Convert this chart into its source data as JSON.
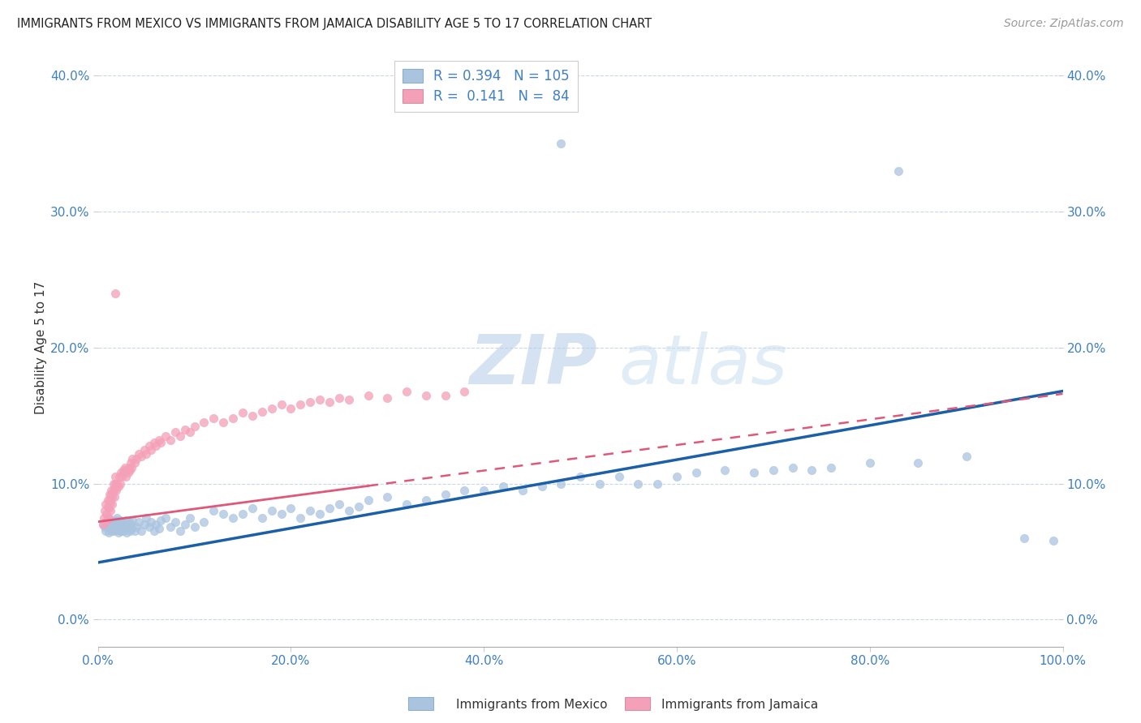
{
  "title": "IMMIGRANTS FROM MEXICO VS IMMIGRANTS FROM JAMAICA DISABILITY AGE 5 TO 17 CORRELATION CHART",
  "source": "Source: ZipAtlas.com",
  "ylabel": "Disability Age 5 to 17",
  "xlim": [
    0.0,
    1.0
  ],
  "ylim": [
    -0.02,
    0.42
  ],
  "yticks": [
    0.0,
    0.1,
    0.2,
    0.3,
    0.4
  ],
  "xticks": [
    0.0,
    0.2,
    0.4,
    0.6,
    0.8,
    1.0
  ],
  "xtick_labels": [
    "0.0%",
    "20.0%",
    "40.0%",
    "60.0%",
    "80.0%",
    "100.0%"
  ],
  "ytick_labels": [
    "0.0%",
    "10.0%",
    "20.0%",
    "30.0%",
    "40.0%"
  ],
  "mexico_color": "#aac4e0",
  "jamaica_color": "#f4a0b8",
  "mexico_line_color": "#1a5fa8",
  "jamaica_line_color": "#e05878",
  "tick_color": "#4080c0",
  "label_color": "#333333",
  "R_mexico": 0.394,
  "N_mexico": 105,
  "R_jamaica": 0.141,
  "N_jamaica": 84,
  "watermark_zip": "ZIP",
  "watermark_atlas": "atlas",
  "mexico_line_start_y": 0.042,
  "mexico_line_end_y": 0.168,
  "jamaica_line_start_y": 0.072,
  "jamaica_line_end_y": 0.166,
  "mexico_points_x": [
    0.005,
    0.007,
    0.008,
    0.009,
    0.01,
    0.01,
    0.011,
    0.012,
    0.013,
    0.013,
    0.014,
    0.015,
    0.015,
    0.016,
    0.017,
    0.018,
    0.018,
    0.019,
    0.02,
    0.02,
    0.021,
    0.022,
    0.022,
    0.023,
    0.024,
    0.025,
    0.025,
    0.026,
    0.027,
    0.028,
    0.029,
    0.03,
    0.031,
    0.032,
    0.033,
    0.034,
    0.035,
    0.036,
    0.038,
    0.04,
    0.042,
    0.045,
    0.048,
    0.05,
    0.053,
    0.055,
    0.058,
    0.06,
    0.063,
    0.065,
    0.07,
    0.075,
    0.08,
    0.085,
    0.09,
    0.095,
    0.1,
    0.11,
    0.12,
    0.13,
    0.14,
    0.15,
    0.16,
    0.17,
    0.18,
    0.19,
    0.2,
    0.21,
    0.22,
    0.23,
    0.24,
    0.25,
    0.26,
    0.27,
    0.28,
    0.3,
    0.32,
    0.34,
    0.36,
    0.38,
    0.4,
    0.42,
    0.44,
    0.46,
    0.48,
    0.5,
    0.52,
    0.54,
    0.56,
    0.58,
    0.6,
    0.62,
    0.65,
    0.68,
    0.7,
    0.72,
    0.74,
    0.76,
    0.8,
    0.85,
    0.9,
    0.48,
    0.83,
    0.96,
    0.99
  ],
  "mexico_points_y": [
    0.07,
    0.068,
    0.065,
    0.072,
    0.068,
    0.075,
    0.064,
    0.07,
    0.067,
    0.073,
    0.065,
    0.068,
    0.072,
    0.065,
    0.07,
    0.067,
    0.073,
    0.066,
    0.068,
    0.075,
    0.064,
    0.07,
    0.066,
    0.073,
    0.065,
    0.068,
    0.072,
    0.065,
    0.07,
    0.067,
    0.073,
    0.064,
    0.068,
    0.072,
    0.065,
    0.07,
    0.067,
    0.073,
    0.065,
    0.068,
    0.072,
    0.065,
    0.07,
    0.075,
    0.068,
    0.072,
    0.065,
    0.07,
    0.067,
    0.073,
    0.075,
    0.068,
    0.072,
    0.065,
    0.07,
    0.075,
    0.068,
    0.072,
    0.08,
    0.078,
    0.075,
    0.078,
    0.082,
    0.075,
    0.08,
    0.078,
    0.082,
    0.075,
    0.08,
    0.078,
    0.082,
    0.085,
    0.08,
    0.083,
    0.088,
    0.09,
    0.085,
    0.088,
    0.092,
    0.095,
    0.095,
    0.098,
    0.095,
    0.098,
    0.1,
    0.105,
    0.1,
    0.105,
    0.1,
    0.1,
    0.105,
    0.108,
    0.11,
    0.108,
    0.11,
    0.112,
    0.11,
    0.112,
    0.115,
    0.115,
    0.12,
    0.35,
    0.33,
    0.06,
    0.058
  ],
  "jamaica_points_x": [
    0.005,
    0.006,
    0.007,
    0.008,
    0.008,
    0.009,
    0.01,
    0.01,
    0.011,
    0.011,
    0.012,
    0.012,
    0.013,
    0.013,
    0.014,
    0.014,
    0.015,
    0.015,
    0.016,
    0.016,
    0.017,
    0.017,
    0.018,
    0.018,
    0.019,
    0.02,
    0.021,
    0.022,
    0.023,
    0.024,
    0.025,
    0.026,
    0.027,
    0.028,
    0.029,
    0.03,
    0.031,
    0.032,
    0.033,
    0.034,
    0.035,
    0.036,
    0.038,
    0.04,
    0.042,
    0.045,
    0.048,
    0.05,
    0.053,
    0.055,
    0.058,
    0.06,
    0.063,
    0.065,
    0.07,
    0.075,
    0.08,
    0.085,
    0.09,
    0.095,
    0.1,
    0.11,
    0.12,
    0.13,
    0.14,
    0.15,
    0.16,
    0.17,
    0.18,
    0.19,
    0.2,
    0.21,
    0.22,
    0.23,
    0.24,
    0.25,
    0.26,
    0.28,
    0.3,
    0.32,
    0.34,
    0.36,
    0.38,
    0.018
  ],
  "jamaica_points_y": [
    0.07,
    0.075,
    0.08,
    0.085,
    0.072,
    0.078,
    0.083,
    0.088,
    0.075,
    0.082,
    0.088,
    0.092,
    0.08,
    0.086,
    0.092,
    0.095,
    0.085,
    0.09,
    0.095,
    0.1,
    0.09,
    0.096,
    0.1,
    0.105,
    0.095,
    0.1,
    0.098,
    0.105,
    0.1,
    0.108,
    0.105,
    0.11,
    0.108,
    0.112,
    0.105,
    0.11,
    0.108,
    0.112,
    0.11,
    0.115,
    0.112,
    0.118,
    0.115,
    0.118,
    0.122,
    0.12,
    0.125,
    0.122,
    0.128,
    0.125,
    0.13,
    0.128,
    0.132,
    0.13,
    0.135,
    0.132,
    0.138,
    0.135,
    0.14,
    0.138,
    0.142,
    0.145,
    0.148,
    0.145,
    0.148,
    0.152,
    0.15,
    0.153,
    0.155,
    0.158,
    0.155,
    0.158,
    0.16,
    0.162,
    0.16,
    0.163,
    0.162,
    0.165,
    0.163,
    0.168,
    0.165,
    0.165,
    0.168,
    0.24
  ]
}
